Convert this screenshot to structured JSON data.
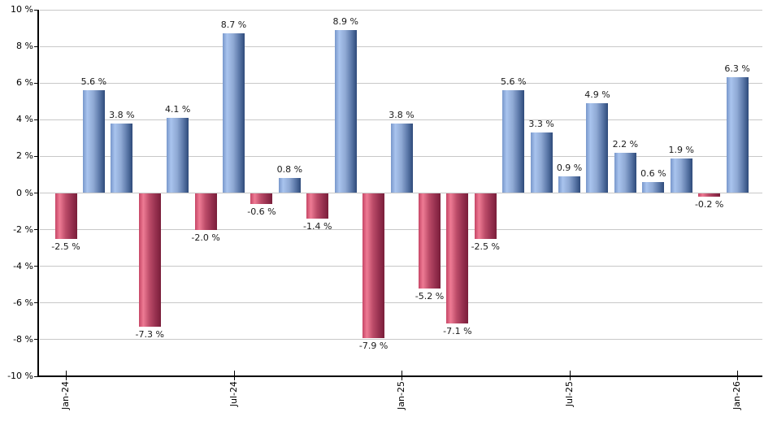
{
  "chart_data": {
    "type": "bar",
    "title": "",
    "xlabel": "",
    "ylabel": "",
    "ylim": [
      -10,
      10
    ],
    "grid": true,
    "legend": false,
    "values": [
      -2.5,
      5.6,
      3.8,
      -7.3,
      4.1,
      -2.0,
      8.7,
      -0.6,
      0.8,
      -1.4,
      8.9,
      -7.9,
      3.8,
      -5.2,
      -7.1,
      -2.5,
      5.6,
      3.3,
      0.9,
      4.9,
      2.2,
      0.6,
      1.9,
      -0.2,
      6.3
    ],
    "bar_labels": [
      "-2.5 %",
      "5.6 %",
      "3.8 %",
      "-7.3 %",
      "4.1 %",
      "-2.0 %",
      "8.7 %",
      "-0.6 %",
      "0.8 %",
      "-1.4 %",
      "8.9 %",
      "-7.9 %",
      "3.8 %",
      "-5.2 %",
      "-7.1 %",
      "-2.5 %",
      "5.6 %",
      "3.3 %",
      "0.9 %",
      "4.9 %",
      "2.2 %",
      "0.6 %",
      "1.9 %",
      "-0.2 %",
      "6.3 %"
    ],
    "x_tick_labels": [
      "Jan-24",
      "Jul-24",
      "Jan-25",
      "Jul-25",
      "Jan-26"
    ],
    "x_tick_bar_indices": [
      0,
      6,
      12,
      18,
      24
    ],
    "y_tick_values": [
      10,
      8,
      6,
      4,
      2,
      0,
      -2,
      -4,
      -6,
      -8,
      -10
    ],
    "y_tick_labels": [
      "10 %",
      "8 %",
      "6 %",
      "4 %",
      "2 %",
      "0 %",
      "-2 %",
      "-4 %",
      "-6 %",
      "-8 %",
      "-10 %"
    ],
    "colors": {
      "positive_gradient": [
        "#7897cb",
        "#a9c4ee",
        "#8fa9d4",
        "#5b78a8",
        "#2e4a7a"
      ],
      "negative_gradient": [
        "#c64666",
        "#ee7b94",
        "#bb4b68",
        "#96304f",
        "#7a1e3a"
      ],
      "gradient_stops_pct": [
        0,
        20,
        48,
        76,
        100
      ],
      "gridline": "#c8c8c8",
      "axis": "#000000",
      "text": "#1a1a1a"
    }
  }
}
